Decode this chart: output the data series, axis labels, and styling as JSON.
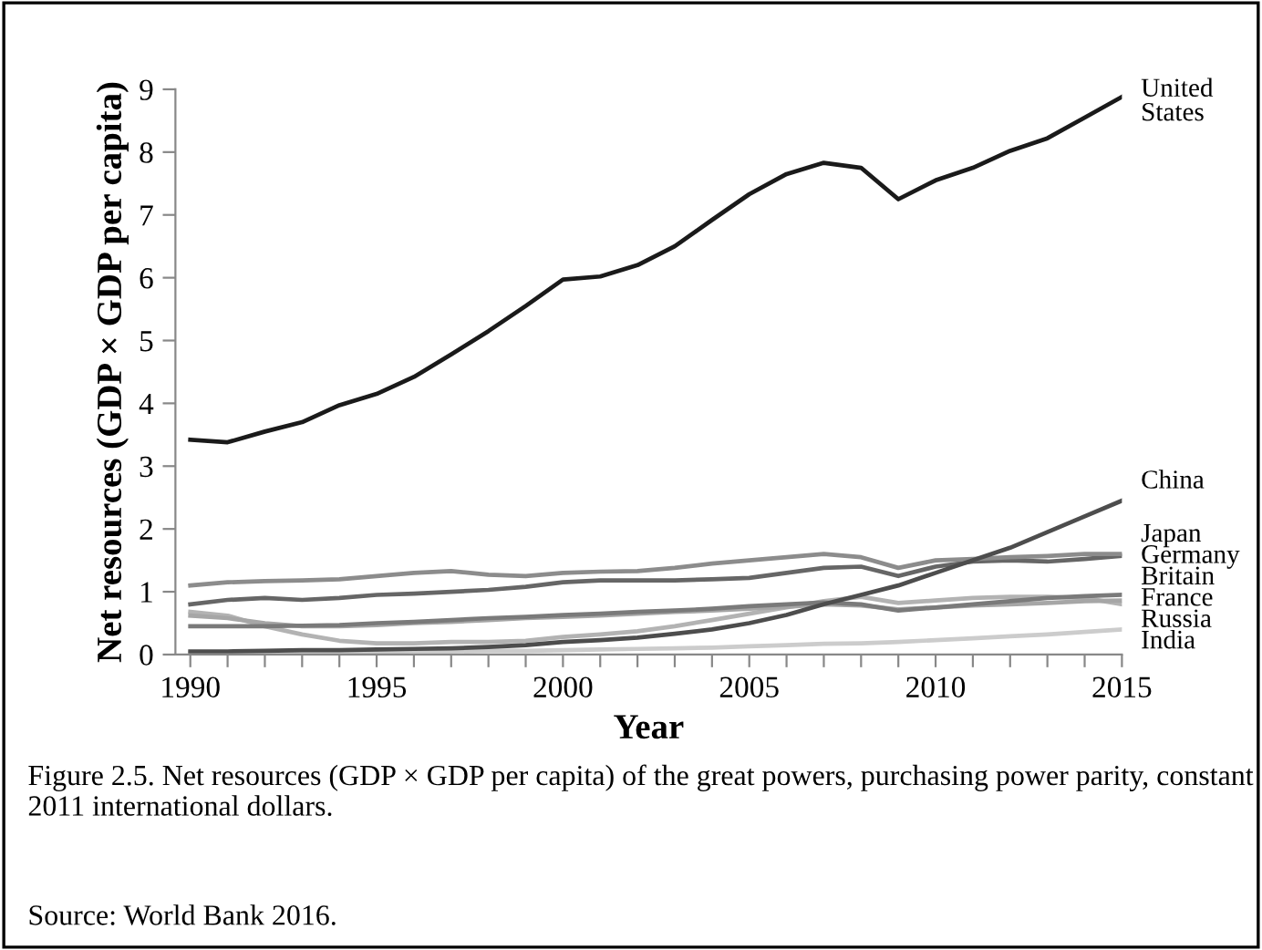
{
  "chart_data": {
    "type": "line",
    "xlabel": "Year",
    "ylabel": "Net resources (GDP × GDP per capita)",
    "x": [
      1990,
      1991,
      1992,
      1993,
      1994,
      1995,
      1996,
      1997,
      1998,
      1999,
      2000,
      2001,
      2002,
      2003,
      2004,
      2005,
      2006,
      2007,
      2008,
      2009,
      2010,
      2011,
      2012,
      2013,
      2014,
      2015
    ],
    "series": [
      {
        "name": "United States",
        "color": "#1a1a1a",
        "values": [
          3.42,
          3.38,
          3.55,
          3.7,
          3.97,
          4.15,
          4.42,
          4.78,
          5.15,
          5.55,
          5.97,
          6.02,
          6.2,
          6.5,
          6.92,
          7.33,
          7.65,
          7.83,
          7.75,
          7.25,
          7.55,
          7.75,
          8.02,
          8.22,
          8.55,
          8.88
        ]
      },
      {
        "name": "China",
        "color": "#4d4d4d",
        "values": [
          0.05,
          0.05,
          0.06,
          0.07,
          0.07,
          0.08,
          0.09,
          0.1,
          0.12,
          0.15,
          0.2,
          0.23,
          0.27,
          0.33,
          0.4,
          0.5,
          0.63,
          0.8,
          0.95,
          1.1,
          1.3,
          1.5,
          1.7,
          1.95,
          2.2,
          2.45
        ]
      },
      {
        "name": "Japan",
        "color": "#8c8c8c",
        "values": [
          1.1,
          1.15,
          1.17,
          1.18,
          1.2,
          1.25,
          1.3,
          1.33,
          1.27,
          1.25,
          1.3,
          1.32,
          1.33,
          1.38,
          1.45,
          1.5,
          1.55,
          1.6,
          1.55,
          1.38,
          1.5,
          1.52,
          1.55,
          1.57,
          1.6,
          1.6
        ]
      },
      {
        "name": "Germany",
        "color": "#666666",
        "values": [
          0.8,
          0.87,
          0.9,
          0.87,
          0.9,
          0.95,
          0.97,
          1.0,
          1.03,
          1.08,
          1.15,
          1.18,
          1.18,
          1.18,
          1.2,
          1.22,
          1.3,
          1.38,
          1.4,
          1.25,
          1.4,
          1.48,
          1.5,
          1.48,
          1.52,
          1.57
        ]
      },
      {
        "name": "Britain",
        "color": "#7a7a7a",
        "values": [
          0.45,
          0.45,
          0.45,
          0.46,
          0.47,
          0.5,
          0.52,
          0.55,
          0.58,
          0.6,
          0.63,
          0.65,
          0.68,
          0.7,
          0.73,
          0.77,
          0.8,
          0.83,
          0.8,
          0.7,
          0.75,
          0.8,
          0.85,
          0.9,
          0.93,
          0.95
        ]
      },
      {
        "name": "France",
        "color": "#a6a6a6",
        "values": [
          0.62,
          0.58,
          0.5,
          0.45,
          0.45,
          0.47,
          0.5,
          0.52,
          0.55,
          0.58,
          0.6,
          0.62,
          0.65,
          0.68,
          0.7,
          0.73,
          0.76,
          0.8,
          0.78,
          0.72,
          0.75,
          0.78,
          0.8,
          0.82,
          0.85,
          0.86
        ]
      },
      {
        "name": "Russia",
        "color": "#b3b3b3",
        "values": [
          0.68,
          0.62,
          0.45,
          0.32,
          0.22,
          0.18,
          0.18,
          0.2,
          0.2,
          0.22,
          0.28,
          0.32,
          0.37,
          0.45,
          0.55,
          0.65,
          0.75,
          0.85,
          0.92,
          0.82,
          0.86,
          0.9,
          0.92,
          0.92,
          0.9,
          0.8
        ]
      },
      {
        "name": "India",
        "color": "#cccccc",
        "values": [
          0.03,
          0.03,
          0.03,
          0.03,
          0.04,
          0.04,
          0.05,
          0.05,
          0.06,
          0.06,
          0.07,
          0.08,
          0.09,
          0.1,
          0.11,
          0.13,
          0.15,
          0.17,
          0.18,
          0.2,
          0.23,
          0.26,
          0.29,
          0.32,
          0.36,
          0.4
        ]
      }
    ],
    "xlim": [
      1989.6,
      2015
    ],
    "xticks": [
      1990,
      {
        "value": 1991,
        "label": null
      },
      {
        "value": 1992,
        "label": null
      },
      {
        "value": 1993,
        "label": null
      },
      {
        "value": 1994,
        "label": null
      },
      1995,
      {
        "value": 1996,
        "label": null
      },
      {
        "value": 1997,
        "label": null
      },
      {
        "value": 1998,
        "label": null
      },
      {
        "value": 1999,
        "label": null
      },
      2000,
      {
        "value": 2001,
        "label": null
      },
      {
        "value": 2002,
        "label": null
      },
      {
        "value": 2003,
        "label": null
      },
      {
        "value": 2004,
        "label": null
      },
      2005,
      {
        "value": 2006,
        "label": null
      },
      {
        "value": 2007,
        "label": null
      },
      {
        "value": 2008,
        "label": null
      },
      {
        "value": 2009,
        "label": null
      },
      2010,
      {
        "value": 2011,
        "label": null
      },
      {
        "value": 2012,
        "label": null
      },
      {
        "value": 2013,
        "label": null
      },
      {
        "value": 2014,
        "label": null
      },
      2015
    ],
    "ylim": [
      0,
      9
    ],
    "yticks": [
      0,
      1,
      2,
      3,
      4,
      5,
      6,
      7,
      8,
      9
    ],
    "grid": false,
    "line_style": "solid",
    "annotations": [
      "Figure 2.5. Net resources (GDP × GDP per capita) of the great powers, purchasing power parity, constant 2011 international dollars.",
      "Source: World Bank 2016."
    ]
  }
}
